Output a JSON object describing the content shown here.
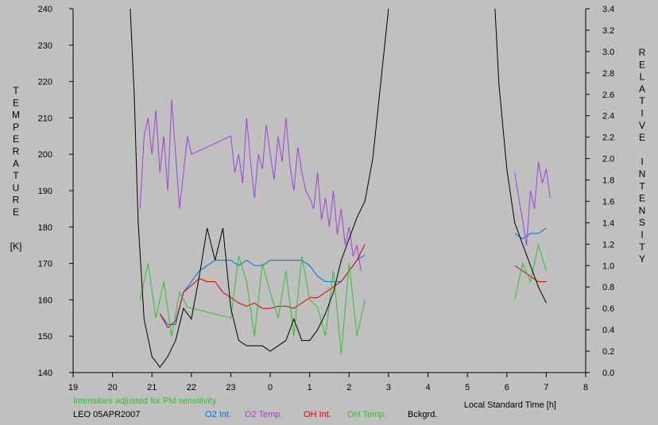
{
  "chart_data": {
    "type": "line",
    "title": "",
    "left_axis": {
      "label": "TEMPERATURE",
      "unit": "[K]",
      "ylim": [
        140,
        240
      ],
      "ticks": [
        "140",
        "150",
        "160",
        "170",
        "180",
        "190",
        "200",
        "210",
        "220",
        "230",
        "240"
      ]
    },
    "right_axis": {
      "label": "RELATIVE INTENSITY",
      "ylim": [
        0.0,
        3.4
      ],
      "ticks": [
        "0.0",
        "0.2",
        "0.4",
        "0.6",
        "0.8",
        "1.0",
        "1.2",
        "1.4",
        "1.6",
        "1.8",
        "2.0",
        "2.2",
        "2.4",
        "2.6",
        "2.8",
        "3.0",
        "3.2",
        "3.4"
      ]
    },
    "x_axis": {
      "label": "Local Standard Time [h]",
      "xlim": [
        19,
        32
      ],
      "ticks": [
        "19",
        "20",
        "21",
        "22",
        "23",
        "0",
        "1",
        "2",
        "3",
        "4",
        "5",
        "6",
        "7",
        "8"
      ]
    },
    "note": "Intensities adjusted for PM sensitivity",
    "station": "LEO 05APR2007",
    "grid": false,
    "series": [
      {
        "name": "O2 Int.",
        "color": "#0070d8",
        "axis": "right",
        "x": [
          21.2,
          21.4,
          21.6,
          21.8,
          22.2,
          22.4,
          22.6,
          22.8,
          23.0,
          23.2,
          23.4,
          23.6,
          23.8,
          24.0,
          24.2,
          24.4,
          24.6,
          24.8,
          25.0,
          25.2,
          25.4,
          25.6,
          25.8,
          26.0,
          26.2,
          26.4,
          30.2,
          30.4,
          30.6,
          30.8,
          31.0
        ],
        "y": [
          0.55,
          0.45,
          0.45,
          0.75,
          0.95,
          1.0,
          1.05,
          1.05,
          1.05,
          1.0,
          1.05,
          1.0,
          1.0,
          1.05,
          1.05,
          1.05,
          1.05,
          1.05,
          1.0,
          0.9,
          0.85,
          0.85,
          0.85,
          0.95,
          1.05,
          1.1,
          1.3,
          1.25,
          1.3,
          1.3,
          1.35
        ]
      },
      {
        "name": "O2 Temp.",
        "color": "#a040d8",
        "axis": "left",
        "x": [
          20.7,
          20.8,
          20.9,
          21.0,
          21.1,
          21.2,
          21.3,
          21.4,
          21.5,
          21.6,
          21.7,
          21.8,
          21.9,
          22.0,
          23.0,
          23.1,
          23.2,
          23.3,
          23.4,
          23.5,
          23.6,
          23.7,
          23.8,
          23.9,
          24.0,
          24.1,
          24.2,
          24.3,
          24.4,
          24.5,
          24.6,
          24.7,
          24.8,
          24.9,
          25.0,
          25.1,
          25.2,
          25.3,
          25.4,
          25.5,
          25.6,
          25.7,
          25.8,
          25.9,
          26.0,
          26.1,
          26.2,
          26.3,
          30.2,
          30.3,
          30.4,
          30.5,
          30.6,
          30.7,
          30.8,
          30.9,
          31.0,
          31.1
        ],
        "y": [
          185,
          205,
          210,
          200,
          212,
          195,
          205,
          190,
          215,
          200,
          185,
          195,
          205,
          200,
          205,
          195,
          200,
          192,
          210,
          198,
          188,
          200,
          196,
          208,
          200,
          193,
          205,
          198,
          210,
          197,
          190,
          202,
          195,
          190,
          188,
          185,
          195,
          182,
          188,
          180,
          190,
          178,
          185,
          175,
          180,
          172,
          175,
          168,
          195,
          188,
          182,
          175,
          190,
          185,
          198,
          192,
          196,
          188
        ]
      },
      {
        "name": "OH Int.",
        "color": "#d80000",
        "axis": "right",
        "x": [
          21.2,
          21.4,
          21.6,
          21.8,
          22.2,
          22.4,
          22.6,
          22.8,
          23.0,
          23.2,
          23.4,
          23.6,
          23.8,
          24.0,
          24.2,
          24.4,
          24.6,
          24.8,
          25.0,
          25.2,
          25.4,
          25.6,
          25.8,
          26.0,
          26.2,
          26.4,
          30.2,
          30.4,
          30.6,
          30.8,
          31.0
        ],
        "y": [
          0.55,
          0.42,
          0.48,
          0.75,
          0.88,
          0.85,
          0.85,
          0.75,
          0.7,
          0.65,
          0.62,
          0.65,
          0.6,
          0.6,
          0.62,
          0.62,
          0.6,
          0.65,
          0.7,
          0.7,
          0.75,
          0.8,
          0.85,
          0.95,
          1.05,
          1.2,
          1.0,
          0.95,
          0.9,
          0.85,
          0.85
        ]
      },
      {
        "name": "OH Temp.",
        "color": "#30c030",
        "axis": "left",
        "x": [
          20.7,
          20.9,
          21.1,
          21.3,
          21.5,
          21.7,
          21.9,
          23.0,
          23.2,
          23.4,
          23.6,
          23.8,
          24.0,
          24.2,
          24.4,
          24.6,
          24.8,
          25.0,
          25.2,
          25.4,
          25.6,
          25.8,
          26.0,
          26.2,
          26.4,
          30.2,
          30.4,
          30.6,
          30.8,
          31.0
        ],
        "y": [
          160,
          170,
          155,
          165,
          150,
          162,
          158,
          155,
          172,
          165,
          150,
          170,
          162,
          155,
          168,
          150,
          172,
          160,
          158,
          150,
          168,
          145,
          170,
          150,
          160,
          160,
          170,
          165,
          175,
          168
        ]
      },
      {
        "name": "Bckgrd.",
        "color": "#000000",
        "axis": "right",
        "x": [
          20.45,
          20.55,
          20.65,
          20.8,
          21.0,
          21.2,
          21.4,
          21.6,
          21.8,
          22.0,
          22.2,
          22.4,
          22.6,
          22.8,
          23.0,
          23.2,
          23.4,
          23.6,
          23.8,
          24.0,
          24.2,
          24.4,
          24.6,
          24.8,
          25.0,
          25.2,
          25.4,
          25.6,
          25.8,
          26.0,
          26.2,
          26.4,
          26.6,
          26.8,
          27.0,
          29.7,
          29.8,
          30.0,
          30.2,
          30.4,
          30.6,
          30.8,
          31.0
        ],
        "y": [
          3.4,
          2.6,
          1.4,
          0.5,
          0.15,
          0.05,
          0.15,
          0.3,
          0.6,
          0.5,
          0.9,
          1.35,
          1.05,
          1.35,
          0.6,
          0.3,
          0.25,
          0.25,
          0.25,
          0.2,
          0.25,
          0.3,
          0.5,
          0.3,
          0.3,
          0.4,
          0.55,
          0.75,
          1.05,
          1.25,
          1.45,
          1.6,
          2.0,
          2.7,
          3.4,
          3.4,
          2.7,
          1.9,
          1.4,
          1.2,
          1.0,
          0.8,
          0.65
        ]
      }
    ]
  }
}
